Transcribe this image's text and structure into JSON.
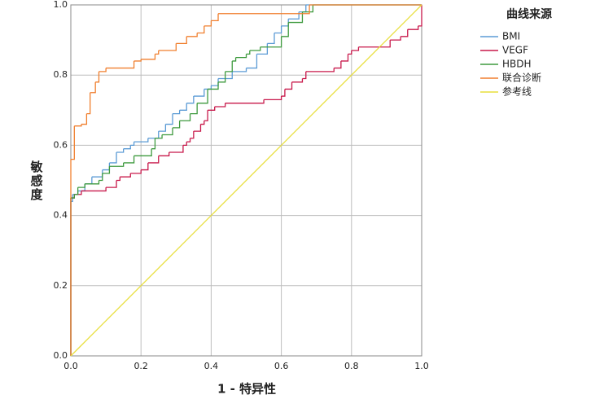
{
  "chart_data": {
    "type": "line",
    "x_label": "1 - 特异性",
    "y_label": "敏感度",
    "legend_title": "曲线来源",
    "legend": "right",
    "grid": true,
    "xlim": [
      0,
      1
    ],
    "ylim": [
      0,
      1
    ],
    "xticks": [
      {
        "value": 0,
        "label": "0.0"
      },
      {
        "value": 0.2,
        "label": "0.2"
      },
      {
        "value": 0.4,
        "label": "0.4"
      },
      {
        "value": 0.6,
        "label": "0.6"
      },
      {
        "value": 0.8,
        "label": "0.8"
      },
      {
        "value": 1,
        "label": "1.0"
      }
    ],
    "yticks": [
      {
        "value": 0,
        "label": "0.0"
      },
      {
        "value": 0.2,
        "label": "0.2"
      },
      {
        "value": 0.4,
        "label": "0.4"
      },
      {
        "value": 0.6,
        "label": "0.6"
      },
      {
        "value": 0.8,
        "label": "0.8"
      },
      {
        "value": 1,
        "label": "1.0"
      }
    ],
    "series": [
      {
        "name": "BMI",
        "color": "#5b9bd5",
        "step": true,
        "x": [
          0,
          0,
          0.005,
          0.02,
          0.04,
          0.06,
          0.09,
          0.11,
          0.13,
          0.15,
          0.17,
          0.18,
          0.22,
          0.25,
          0.27,
          0.29,
          0.31,
          0.33,
          0.35,
          0.38,
          0.4,
          0.42,
          0.46,
          0.5,
          0.53,
          0.56,
          0.58,
          0.6,
          0.62,
          0.65,
          0.67,
          1
        ],
        "values": [
          0,
          0.44,
          0.46,
          0.47,
          0.49,
          0.51,
          0.53,
          0.55,
          0.58,
          0.59,
          0.6,
          0.61,
          0.62,
          0.64,
          0.66,
          0.69,
          0.7,
          0.72,
          0.74,
          0.76,
          0.77,
          0.79,
          0.81,
          0.82,
          0.86,
          0.89,
          0.92,
          0.94,
          0.96,
          0.98,
          1,
          1
        ]
      },
      {
        "name": "VEGF",
        "color": "#c8184a",
        "step": true,
        "x": [
          0,
          0,
          0.01,
          0.03,
          0.1,
          0.13,
          0.14,
          0.17,
          0.2,
          0.22,
          0.25,
          0.28,
          0.32,
          0.33,
          0.34,
          0.35,
          0.37,
          0.38,
          0.39,
          0.41,
          0.44,
          0.55,
          0.6,
          0.61,
          0.63,
          0.66,
          0.67,
          0.75,
          0.77,
          0.79,
          0.8,
          0.82,
          0.91,
          0.94,
          0.96,
          0.99,
          1
        ],
        "values": [
          0,
          0.45,
          0.46,
          0.47,
          0.48,
          0.5,
          0.51,
          0.52,
          0.53,
          0.55,
          0.57,
          0.58,
          0.6,
          0.61,
          0.62,
          0.64,
          0.66,
          0.67,
          0.7,
          0.71,
          0.72,
          0.73,
          0.74,
          0.76,
          0.78,
          0.79,
          0.81,
          0.82,
          0.84,
          0.86,
          0.87,
          0.88,
          0.9,
          0.91,
          0.93,
          0.94,
          1
        ]
      },
      {
        "name": "HBDH",
        "color": "#3e9a3e",
        "step": true,
        "x": [
          0,
          0,
          0.01,
          0.02,
          0.04,
          0.08,
          0.09,
          0.11,
          0.15,
          0.18,
          0.23,
          0.24,
          0.26,
          0.29,
          0.31,
          0.34,
          0.36,
          0.39,
          0.42,
          0.44,
          0.46,
          0.47,
          0.5,
          0.51,
          0.54,
          0.6,
          0.62,
          0.66,
          0.69,
          1
        ],
        "values": [
          0,
          0.45,
          0.46,
          0.48,
          0.49,
          0.5,
          0.52,
          0.54,
          0.55,
          0.57,
          0.59,
          0.62,
          0.63,
          0.65,
          0.67,
          0.69,
          0.72,
          0.76,
          0.78,
          0.81,
          0.84,
          0.85,
          0.86,
          0.87,
          0.88,
          0.91,
          0.95,
          0.98,
          1,
          1
        ]
      },
      {
        "name": "联合诊断",
        "color": "#f07f2e",
        "step": true,
        "x": [
          0,
          0,
          0.01,
          0.03,
          0.045,
          0.055,
          0.07,
          0.08,
          0.1,
          0.18,
          0.2,
          0.24,
          0.25,
          0.3,
          0.33,
          0.36,
          0.38,
          0.4,
          0.42,
          0.68,
          1
        ],
        "values": [
          0,
          0.56,
          0.655,
          0.66,
          0.69,
          0.75,
          0.78,
          0.81,
          0.82,
          0.84,
          0.845,
          0.86,
          0.87,
          0.89,
          0.91,
          0.92,
          0.94,
          0.955,
          0.975,
          1,
          1
        ]
      },
      {
        "name": "参考线",
        "color": "#e8df3c",
        "step": false,
        "x": [
          0,
          1
        ],
        "values": [
          0,
          1
        ]
      }
    ]
  }
}
